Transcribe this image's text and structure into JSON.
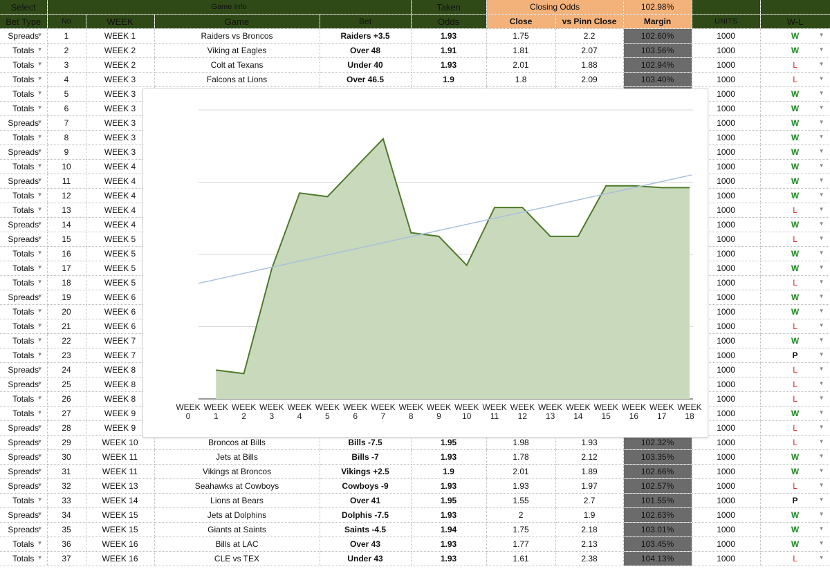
{
  "header": {
    "select_label": "Select",
    "game_info_label": "Game Info",
    "taken_label": "Taken",
    "closing_odds_label": "Closing Odds",
    "closing_odds_pct": "102.98%",
    "cols": {
      "bet_type": "Bet Type",
      "no": "No",
      "week": "WEEK",
      "game": "Game",
      "bet": "Bet",
      "odds": "Odds",
      "close": "Close",
      "vs_pinn": "vs Pinn Close",
      "margin": "Margin",
      "units": "UNITS",
      "wl": "W-L"
    }
  },
  "rows": [
    {
      "type": "Spreads",
      "no": "1",
      "week": "WEEK 1",
      "game": "Raiders vs Broncos",
      "bet": "Raiders +3.5",
      "odds": "1.93",
      "close": "1.75",
      "pinn": "2.2",
      "margin": "102.60%",
      "units": "1000",
      "wl": "W"
    },
    {
      "type": "Totals",
      "no": "2",
      "week": "WEEK 2",
      "game": "Viking at Eagles",
      "bet": "Over 48",
      "odds": "1.91",
      "close": "1.81",
      "pinn": "2.07",
      "margin": "103.56%",
      "units": "1000",
      "wl": "W"
    },
    {
      "type": "Totals",
      "no": "3",
      "week": "WEEK 2",
      "game": "Colt at Texans",
      "bet": "Under 40",
      "odds": "1.93",
      "close": "2.01",
      "pinn": "1.88",
      "margin": "102.94%",
      "units": "1000",
      "wl": "L"
    },
    {
      "type": "Totals",
      "no": "4",
      "week": "WEEK 3",
      "game": "Falcons at Lions",
      "bet": "Over 46.5",
      "odds": "1.9",
      "close": "1.8",
      "pinn": "2.09",
      "margin": "103.40%",
      "units": "1000",
      "wl": "L"
    },
    {
      "type": "Totals",
      "no": "5",
      "week": "WEEK 3",
      "game": "",
      "bet": "",
      "odds": "",
      "close": "",
      "pinn": "",
      "margin": "",
      "units": "1000",
      "wl": "W"
    },
    {
      "type": "Totals",
      "no": "6",
      "week": "WEEK 3",
      "game": "",
      "bet": "",
      "odds": "",
      "close": "",
      "pinn": "",
      "margin": "",
      "units": "1000",
      "wl": "W"
    },
    {
      "type": "Spreads",
      "no": "7",
      "week": "WEEK 3",
      "game": "",
      "bet": "",
      "odds": "",
      "close": "",
      "pinn": "",
      "margin": "",
      "units": "1000",
      "wl": "W"
    },
    {
      "type": "Totals",
      "no": "8",
      "week": "WEEK 3",
      "game": "",
      "bet": "",
      "odds": "",
      "close": "",
      "pinn": "",
      "margin": "",
      "units": "1000",
      "wl": "W"
    },
    {
      "type": "Spreads",
      "no": "9",
      "week": "WEEK 3",
      "game": "",
      "bet": "",
      "odds": "",
      "close": "",
      "pinn": "",
      "margin": "",
      "units": "1000",
      "wl": "W"
    },
    {
      "type": "Totals",
      "no": "10",
      "week": "WEEK 4",
      "game": "",
      "bet": "",
      "odds": "",
      "close": "",
      "pinn": "",
      "margin": "",
      "units": "1000",
      "wl": "W"
    },
    {
      "type": "Spreads",
      "no": "11",
      "week": "WEEK 4",
      "game": "",
      "bet": "",
      "odds": "",
      "close": "",
      "pinn": "",
      "margin": "",
      "units": "1000",
      "wl": "W"
    },
    {
      "type": "Totals",
      "no": "12",
      "week": "WEEK 4",
      "game": "",
      "bet": "",
      "odds": "",
      "close": "",
      "pinn": "",
      "margin": "",
      "units": "1000",
      "wl": "W"
    },
    {
      "type": "Totals",
      "no": "13",
      "week": "WEEK 4",
      "game": "",
      "bet": "",
      "odds": "",
      "close": "",
      "pinn": "",
      "margin": "",
      "units": "1000",
      "wl": "L"
    },
    {
      "type": "Spreads",
      "no": "14",
      "week": "WEEK 4",
      "game": "",
      "bet": "",
      "odds": "",
      "close": "",
      "pinn": "",
      "margin": "",
      "units": "1000",
      "wl": "W"
    },
    {
      "type": "Spreads",
      "no": "15",
      "week": "WEEK 5",
      "game": "",
      "bet": "",
      "odds": "",
      "close": "",
      "pinn": "",
      "margin": "",
      "units": "1000",
      "wl": "L"
    },
    {
      "type": "Totals",
      "no": "16",
      "week": "WEEK 5",
      "game": "",
      "bet": "",
      "odds": "",
      "close": "",
      "pinn": "",
      "margin": "",
      "units": "1000",
      "wl": "W"
    },
    {
      "type": "Totals",
      "no": "17",
      "week": "WEEK 5",
      "game": "",
      "bet": "",
      "odds": "",
      "close": "",
      "pinn": "",
      "margin": "",
      "units": "1000",
      "wl": "W"
    },
    {
      "type": "Totals",
      "no": "18",
      "week": "WEEK 5",
      "game": "",
      "bet": "",
      "odds": "",
      "close": "",
      "pinn": "",
      "margin": "",
      "units": "1000",
      "wl": "L"
    },
    {
      "type": "Spreads",
      "no": "19",
      "week": "WEEK 6",
      "game": "",
      "bet": "",
      "odds": "",
      "close": "",
      "pinn": "",
      "margin": "",
      "units": "1000",
      "wl": "W"
    },
    {
      "type": "Totals",
      "no": "20",
      "week": "WEEK 6",
      "game": "",
      "bet": "",
      "odds": "",
      "close": "",
      "pinn": "",
      "margin": "",
      "units": "1000",
      "wl": "W"
    },
    {
      "type": "Totals",
      "no": "21",
      "week": "WEEK 6",
      "game": "",
      "bet": "",
      "odds": "",
      "close": "",
      "pinn": "",
      "margin": "",
      "units": "1000",
      "wl": "L"
    },
    {
      "type": "Totals",
      "no": "22",
      "week": "WEEK 7",
      "game": "",
      "bet": "",
      "odds": "",
      "close": "",
      "pinn": "",
      "margin": "",
      "units": "1000",
      "wl": "W"
    },
    {
      "type": "Totals",
      "no": "23",
      "week": "WEEK 7",
      "game": "",
      "bet": "",
      "odds": "",
      "close": "",
      "pinn": "",
      "margin": "",
      "units": "1000",
      "wl": "P"
    },
    {
      "type": "Spreads",
      "no": "24",
      "week": "WEEK 8",
      "game": "",
      "bet": "",
      "odds": "",
      "close": "",
      "pinn": "",
      "margin": "",
      "units": "1000",
      "wl": "L"
    },
    {
      "type": "Spreads",
      "no": "25",
      "week": "WEEK 8",
      "game": "",
      "bet": "",
      "odds": "",
      "close": "",
      "pinn": "",
      "margin": "",
      "units": "1000",
      "wl": "L"
    },
    {
      "type": "Totals",
      "no": "26",
      "week": "WEEK 8",
      "game": "",
      "bet": "",
      "odds": "",
      "close": "",
      "pinn": "",
      "margin": "",
      "units": "1000",
      "wl": "L"
    },
    {
      "type": "Totals",
      "no": "27",
      "week": "WEEK 9",
      "game": "",
      "bet": "",
      "odds": "",
      "close": "",
      "pinn": "",
      "margin": "",
      "units": "1000",
      "wl": "W"
    },
    {
      "type": "Spreads",
      "no": "28",
      "week": "WEEK 9",
      "game": "",
      "bet": "",
      "odds": "",
      "close": "",
      "pinn": "",
      "margin": "",
      "units": "1000",
      "wl": "L"
    },
    {
      "type": "Spreads",
      "no": "29",
      "week": "WEEK 10",
      "game": "Broncos at Bills",
      "bet": "Bills -7.5",
      "odds": "1.95",
      "close": "1.98",
      "pinn": "1.93",
      "margin": "102.32%",
      "units": "1000",
      "wl": "L"
    },
    {
      "type": "Spreads",
      "no": "30",
      "week": "WEEK 11",
      "game": "Jets at Bills",
      "bet": "Bills -7",
      "odds": "1.93",
      "close": "1.78",
      "pinn": "2.12",
      "margin": "103.35%",
      "units": "1000",
      "wl": "W"
    },
    {
      "type": "Spreads",
      "no": "31",
      "week": "WEEK 11",
      "game": "Vikings at Broncos",
      "bet": "Vikings +2.5",
      "odds": "1.9",
      "close": "2.01",
      "pinn": "1.89",
      "margin": "102.66%",
      "units": "1000",
      "wl": "W"
    },
    {
      "type": "Spreads",
      "no": "32",
      "week": "WEEK 13",
      "game": "Seahawks at Cowboys",
      "bet": "Cowboys -9",
      "odds": "1.93",
      "close": "1.93",
      "pinn": "1.97",
      "margin": "102.57%",
      "units": "1000",
      "wl": "L"
    },
    {
      "type": "Totals",
      "no": "33",
      "week": "WEEK 14",
      "game": "Lions at Bears",
      "bet": "Over 41",
      "odds": "1.95",
      "close": "1.55",
      "pinn": "2.7",
      "margin": "101.55%",
      "units": "1000",
      "wl": "P"
    },
    {
      "type": "Spreads",
      "no": "34",
      "week": "WEEK 15",
      "game": "Jets at Dolphins",
      "bet": "Dolphis -7.5",
      "odds": "1.93",
      "close": "2",
      "pinn": "1.9",
      "margin": "102.63%",
      "units": "1000",
      "wl": "W"
    },
    {
      "type": "Spreads",
      "no": "35",
      "week": "WEEK 15",
      "game": "Giants at Saints",
      "bet": "Saints -4.5",
      "odds": "1.94",
      "close": "1.75",
      "pinn": "2.18",
      "margin": "103.01%",
      "units": "1000",
      "wl": "W"
    },
    {
      "type": "Totals",
      "no": "36",
      "week": "WEEK 16",
      "game": "Bills at LAC",
      "bet": "Over 43",
      "odds": "1.93",
      "close": "1.77",
      "pinn": "2.13",
      "margin": "103.45%",
      "units": "1000",
      "wl": "W"
    },
    {
      "type": "Totals",
      "no": "37",
      "week": "WEEK 16",
      "game": "CLE vs TEX",
      "bet": "Under 43",
      "odds": "1.93",
      "close": "1.61",
      "pinn": "2.38",
      "margin": "104.13%",
      "units": "1000",
      "wl": "L"
    }
  ],
  "colors": {
    "header_green": "#2f4a17",
    "header_orange": "#f3b27a",
    "win": "#1e8a1e",
    "loss": "#d9231f",
    "margin_bg": "#6b6b6b",
    "chart_line": "#4d7a2a",
    "chart_fill": "#c9d9bc",
    "trend_line": "#a9c0dc"
  },
  "icons": {
    "dropdown": "triangle-down"
  },
  "chart_data": {
    "type": "area",
    "x": [
      "WEEK 0",
      "WEEK 1",
      "WEEK 2",
      "WEEK 3",
      "WEEK 4",
      "WEEK 5",
      "WEEK 6",
      "WEEK 7",
      "WEEK 8",
      "WEEK 9",
      "WEEK 10",
      "WEEK 11",
      "WEEK 12",
      "WEEK 13",
      "WEEK 14",
      "WEEK 15",
      "WEEK 16",
      "WEEK 17",
      "WEEK 18"
    ],
    "x_tick_top": [
      "WEEK",
      "WEEK",
      "WEEK",
      "WEEK",
      "WEEK",
      "WEEK",
      "WEEK",
      "WEEK",
      "WEEK",
      "WEEK",
      "WEEK",
      "WEEK",
      "WEEK",
      "WEEK",
      "WEEK",
      "WEEK",
      "WEEK",
      "WEEK",
      "WEEK"
    ],
    "x_tick_bottom": [
      "0",
      "1",
      "2",
      "3",
      "4",
      "5",
      "6",
      "7",
      "8",
      "9",
      "10",
      "11",
      "12",
      "13",
      "14",
      "15",
      "16",
      "17",
      "18"
    ],
    "series": [
      {
        "values": [
          null,
          0.8,
          0.7,
          3.6,
          5.7,
          5.6,
          6.4,
          7.2,
          4.6,
          4.5,
          3.7,
          5.3,
          5.3,
          4.5,
          4.5,
          5.9,
          5.9,
          5.85,
          5.85
        ]
      }
    ],
    "trend": {
      "start": 3.2,
      "end": 6.2
    },
    "ylim": [
      0,
      8
    ],
    "gridlines": 4,
    "grid": true,
    "legend": "none"
  }
}
